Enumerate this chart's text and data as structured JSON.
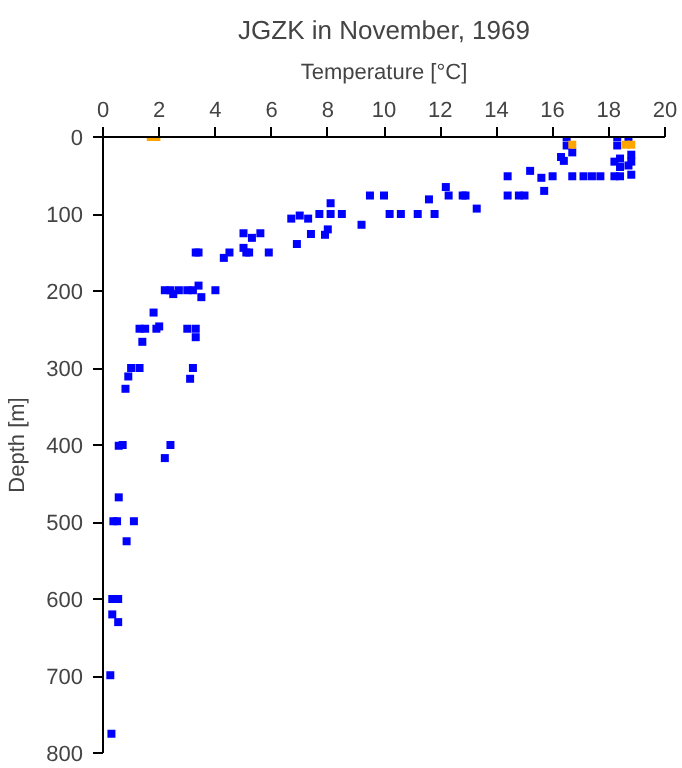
{
  "chart_data": {
    "type": "scatter",
    "title": "JGZK in November, 1969",
    "xlabel": "Temperature [°C]",
    "ylabel": "Depth [m]",
    "xlim": [
      0,
      20
    ],
    "xticks": [
      0,
      2,
      4,
      6,
      8,
      10,
      12,
      14,
      16,
      18,
      20
    ],
    "ylim": [
      800,
      0
    ],
    "yticks": [
      0,
      100,
      200,
      300,
      400,
      500,
      600,
      700,
      800
    ],
    "grid": false,
    "marker": "square",
    "series": [
      {
        "color": "#0000ff",
        "x": [
          16.5,
          16.5,
          16.7,
          16.4,
          16.3,
          18.3,
          18.7,
          18.3,
          18.2,
          18.4,
          18.8,
          18.8,
          18.4,
          18.7,
          18.4,
          18.8,
          18.2,
          14.4,
          15.2,
          15.6,
          16.0,
          16.7,
          17.1,
          17.4,
          17.7,
          14.4,
          14.8,
          15.0,
          15.7,
          12.2,
          12.3,
          12.8,
          12.9,
          13.3,
          11.6,
          11.8,
          11.2,
          10.6,
          10.2,
          10.0,
          9.5,
          9.2,
          8.1,
          8.1,
          8.5,
          7.7,
          8.0,
          7.9,
          7.4,
          7.3,
          7.0,
          6.7,
          6.9,
          5.0,
          5.6,
          5.3,
          5.0,
          5.2,
          5.1,
          5.9,
          4.5,
          4.3,
          3.3,
          3.4,
          1.8,
          2.2,
          2.4,
          2.5,
          2.7,
          3.0,
          3.2,
          3.4,
          3.5,
          4.0,
          1.3,
          1.5,
          1.9,
          2.0,
          1.4,
          3.0,
          3.3,
          3.3,
          3.2,
          3.1,
          1.0,
          1.3,
          0.9,
          0.8,
          0.56,
          0.7,
          2.4,
          2.2,
          0.56,
          0.37,
          0.5,
          1.1,
          0.84,
          0.33,
          0.54,
          0.33,
          0.54,
          0.26,
          0.3
        ],
        "values": [
          0,
          11,
          20,
          31,
          26,
          0,
          0,
          11,
          32,
          28,
          23,
          32,
          39,
          37,
          51,
          49,
          51,
          51,
          44,
          53,
          51,
          51,
          51,
          51,
          51,
          76,
          76,
          76,
          70,
          65,
          76,
          76,
          76,
          93,
          81,
          100,
          100,
          100,
          100,
          76,
          76,
          114,
          86,
          100,
          100,
          100,
          120,
          127,
          126,
          106,
          102,
          106,
          139,
          125,
          125,
          131,
          144,
          150,
          150,
          150,
          150,
          157,
          150,
          150,
          228,
          199,
          199,
          204,
          199,
          199,
          199,
          193,
          208,
          199,
          249,
          249,
          249,
          246,
          266,
          249,
          249,
          260,
          300,
          314,
          300,
          300,
          311,
          327,
          401,
          400,
          400,
          417,
          468,
          499,
          499,
          499,
          525,
          600,
          600,
          620,
          630,
          699,
          775
        ]
      },
      {
        "color": "#ffa500",
        "x": [
          1.7,
          1.9,
          16.7,
          18.6,
          18.8
        ],
        "values": [
          0,
          0,
          10,
          10,
          10
        ]
      }
    ]
  }
}
